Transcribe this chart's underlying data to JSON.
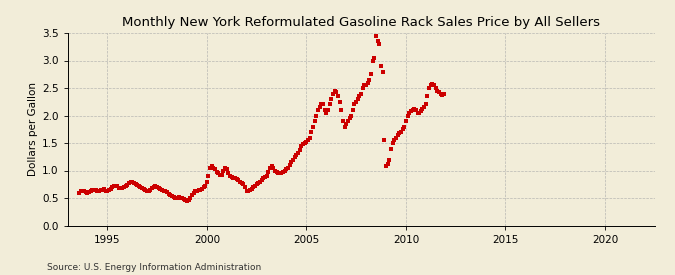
{
  "title": "Monthly New York Reformulated Gasoline Rack Sales Price by All Sellers",
  "ylabel": "Dollars per Gallon",
  "source": "Source: U.S. Energy Information Administration",
  "background_color": "#F2EDD9",
  "plot_bg_color": "#F2EDD9",
  "marker_color": "#CC0000",
  "grid_color": "#AAAAAA",
  "xlim": [
    1993.0,
    2022.5
  ],
  "ylim": [
    0.0,
    3.5
  ],
  "xticks": [
    1995,
    2000,
    2005,
    2010,
    2015,
    2020
  ],
  "yticks": [
    0.0,
    0.5,
    1.0,
    1.5,
    2.0,
    2.5,
    3.0,
    3.5
  ],
  "data": [
    [
      1993.583,
      0.6
    ],
    [
      1993.667,
      0.62
    ],
    [
      1993.75,
      0.63
    ],
    [
      1993.833,
      0.62
    ],
    [
      1993.917,
      0.61
    ],
    [
      1994.0,
      0.6
    ],
    [
      1994.083,
      0.61
    ],
    [
      1994.167,
      0.63
    ],
    [
      1994.25,
      0.65
    ],
    [
      1994.333,
      0.65
    ],
    [
      1994.417,
      0.64
    ],
    [
      1994.5,
      0.63
    ],
    [
      1994.583,
      0.62
    ],
    [
      1994.667,
      0.64
    ],
    [
      1994.75,
      0.65
    ],
    [
      1994.833,
      0.66
    ],
    [
      1994.917,
      0.63
    ],
    [
      1995.0,
      0.62
    ],
    [
      1995.083,
      0.64
    ],
    [
      1995.167,
      0.67
    ],
    [
      1995.25,
      0.7
    ],
    [
      1995.333,
      0.72
    ],
    [
      1995.417,
      0.72
    ],
    [
      1995.5,
      0.71
    ],
    [
      1995.583,
      0.69
    ],
    [
      1995.667,
      0.68
    ],
    [
      1995.75,
      0.69
    ],
    [
      1995.833,
      0.7
    ],
    [
      1995.917,
      0.72
    ],
    [
      1996.0,
      0.74
    ],
    [
      1996.083,
      0.78
    ],
    [
      1996.167,
      0.8
    ],
    [
      1996.25,
      0.79
    ],
    [
      1996.333,
      0.78
    ],
    [
      1996.417,
      0.76
    ],
    [
      1996.5,
      0.74
    ],
    [
      1996.583,
      0.72
    ],
    [
      1996.667,
      0.7
    ],
    [
      1996.75,
      0.68
    ],
    [
      1996.833,
      0.66
    ],
    [
      1996.917,
      0.64
    ],
    [
      1997.0,
      0.62
    ],
    [
      1997.083,
      0.63
    ],
    [
      1997.167,
      0.65
    ],
    [
      1997.25,
      0.68
    ],
    [
      1997.333,
      0.7
    ],
    [
      1997.417,
      0.71
    ],
    [
      1997.5,
      0.7
    ],
    [
      1997.583,
      0.68
    ],
    [
      1997.667,
      0.66
    ],
    [
      1997.75,
      0.65
    ],
    [
      1997.833,
      0.63
    ],
    [
      1997.917,
      0.62
    ],
    [
      1998.0,
      0.61
    ],
    [
      1998.083,
      0.58
    ],
    [
      1998.167,
      0.56
    ],
    [
      1998.25,
      0.54
    ],
    [
      1998.333,
      0.52
    ],
    [
      1998.417,
      0.5
    ],
    [
      1998.5,
      0.5
    ],
    [
      1998.583,
      0.51
    ],
    [
      1998.667,
      0.5
    ],
    [
      1998.75,
      0.5
    ],
    [
      1998.833,
      0.48
    ],
    [
      1998.917,
      0.46
    ],
    [
      1999.0,
      0.44
    ],
    [
      1999.083,
      0.46
    ],
    [
      1999.167,
      0.5
    ],
    [
      1999.25,
      0.56
    ],
    [
      1999.333,
      0.6
    ],
    [
      1999.417,
      0.62
    ],
    [
      1999.5,
      0.63
    ],
    [
      1999.583,
      0.64
    ],
    [
      1999.667,
      0.65
    ],
    [
      1999.75,
      0.67
    ],
    [
      1999.833,
      0.7
    ],
    [
      1999.917,
      0.72
    ],
    [
      2000.0,
      0.8
    ],
    [
      2000.083,
      0.9
    ],
    [
      2000.167,
      1.05
    ],
    [
      2000.25,
      1.08
    ],
    [
      2000.333,
      1.05
    ],
    [
      2000.417,
      1.02
    ],
    [
      2000.5,
      0.98
    ],
    [
      2000.583,
      0.95
    ],
    [
      2000.667,
      0.92
    ],
    [
      2000.75,
      0.92
    ],
    [
      2000.833,
      1.0
    ],
    [
      2000.917,
      1.05
    ],
    [
      2001.0,
      1.02
    ],
    [
      2001.083,
      0.95
    ],
    [
      2001.167,
      0.9
    ],
    [
      2001.25,
      0.88
    ],
    [
      2001.333,
      0.87
    ],
    [
      2001.417,
      0.86
    ],
    [
      2001.5,
      0.85
    ],
    [
      2001.583,
      0.82
    ],
    [
      2001.667,
      0.8
    ],
    [
      2001.75,
      0.78
    ],
    [
      2001.833,
      0.76
    ],
    [
      2001.917,
      0.7
    ],
    [
      2002.0,
      0.62
    ],
    [
      2002.083,
      0.63
    ],
    [
      2002.167,
      0.65
    ],
    [
      2002.25,
      0.67
    ],
    [
      2002.333,
      0.7
    ],
    [
      2002.417,
      0.72
    ],
    [
      2002.5,
      0.75
    ],
    [
      2002.583,
      0.78
    ],
    [
      2002.667,
      0.8
    ],
    [
      2002.75,
      0.83
    ],
    [
      2002.833,
      0.87
    ],
    [
      2002.917,
      0.88
    ],
    [
      2003.0,
      0.9
    ],
    [
      2003.083,
      0.98
    ],
    [
      2003.167,
      1.05
    ],
    [
      2003.25,
      1.08
    ],
    [
      2003.333,
      1.05
    ],
    [
      2003.417,
      1.0
    ],
    [
      2003.5,
      0.98
    ],
    [
      2003.583,
      0.96
    ],
    [
      2003.667,
      0.95
    ],
    [
      2003.75,
      0.96
    ],
    [
      2003.833,
      0.98
    ],
    [
      2003.917,
      1.0
    ],
    [
      2004.0,
      1.02
    ],
    [
      2004.083,
      1.05
    ],
    [
      2004.167,
      1.1
    ],
    [
      2004.25,
      1.15
    ],
    [
      2004.333,
      1.2
    ],
    [
      2004.417,
      1.25
    ],
    [
      2004.5,
      1.28
    ],
    [
      2004.583,
      1.32
    ],
    [
      2004.667,
      1.38
    ],
    [
      2004.75,
      1.45
    ],
    [
      2004.833,
      1.48
    ],
    [
      2004.917,
      1.5
    ],
    [
      2005.0,
      1.52
    ],
    [
      2005.083,
      1.55
    ],
    [
      2005.167,
      1.6
    ],
    [
      2005.25,
      1.7
    ],
    [
      2005.333,
      1.8
    ],
    [
      2005.417,
      1.9
    ],
    [
      2005.5,
      2.0
    ],
    [
      2005.583,
      2.1
    ],
    [
      2005.667,
      2.15
    ],
    [
      2005.75,
      2.2
    ],
    [
      2005.833,
      2.2
    ],
    [
      2005.917,
      2.1
    ],
    [
      2006.0,
      2.05
    ],
    [
      2006.083,
      2.1
    ],
    [
      2006.167,
      2.2
    ],
    [
      2006.25,
      2.3
    ],
    [
      2006.333,
      2.4
    ],
    [
      2006.417,
      2.45
    ],
    [
      2006.5,
      2.42
    ],
    [
      2006.583,
      2.35
    ],
    [
      2006.667,
      2.25
    ],
    [
      2006.75,
      2.1
    ],
    [
      2006.833,
      1.9
    ],
    [
      2006.917,
      1.8
    ],
    [
      2007.0,
      1.85
    ],
    [
      2007.083,
      1.9
    ],
    [
      2007.167,
      1.95
    ],
    [
      2007.25,
      2.0
    ],
    [
      2007.333,
      2.1
    ],
    [
      2007.417,
      2.2
    ],
    [
      2007.5,
      2.25
    ],
    [
      2007.583,
      2.3
    ],
    [
      2007.667,
      2.35
    ],
    [
      2007.75,
      2.4
    ],
    [
      2007.833,
      2.5
    ],
    [
      2007.917,
      2.55
    ],
    [
      2008.0,
      2.55
    ],
    [
      2008.083,
      2.6
    ],
    [
      2008.167,
      2.65
    ],
    [
      2008.25,
      2.75
    ],
    [
      2008.333,
      3.0
    ],
    [
      2008.417,
      3.05
    ],
    [
      2008.5,
      3.45
    ],
    [
      2008.583,
      3.35
    ],
    [
      2008.667,
      3.3
    ],
    [
      2008.75,
      2.9
    ],
    [
      2008.833,
      2.8
    ],
    [
      2008.917,
      1.55
    ],
    [
      2009.0,
      1.08
    ],
    [
      2009.083,
      1.12
    ],
    [
      2009.167,
      1.2
    ],
    [
      2009.25,
      1.4
    ],
    [
      2009.333,
      1.5
    ],
    [
      2009.417,
      1.55
    ],
    [
      2009.5,
      1.6
    ],
    [
      2009.583,
      1.65
    ],
    [
      2009.667,
      1.68
    ],
    [
      2009.75,
      1.7
    ],
    [
      2009.833,
      1.75
    ],
    [
      2009.917,
      1.8
    ],
    [
      2010.0,
      1.9
    ],
    [
      2010.083,
      2.0
    ],
    [
      2010.167,
      2.05
    ],
    [
      2010.25,
      2.08
    ],
    [
      2010.333,
      2.1
    ],
    [
      2010.417,
      2.12
    ],
    [
      2010.5,
      2.1
    ],
    [
      2010.583,
      2.05
    ],
    [
      2010.667,
      2.05
    ],
    [
      2010.75,
      2.08
    ],
    [
      2010.833,
      2.12
    ],
    [
      2010.917,
      2.15
    ],
    [
      2011.0,
      2.2
    ],
    [
      2011.083,
      2.35
    ],
    [
      2011.167,
      2.5
    ],
    [
      2011.25,
      2.55
    ],
    [
      2011.333,
      2.58
    ],
    [
      2011.417,
      2.55
    ],
    [
      2011.5,
      2.5
    ],
    [
      2011.583,
      2.45
    ],
    [
      2011.667,
      2.42
    ],
    [
      2011.75,
      2.4
    ],
    [
      2011.833,
      2.38
    ],
    [
      2011.917,
      2.4
    ]
  ]
}
